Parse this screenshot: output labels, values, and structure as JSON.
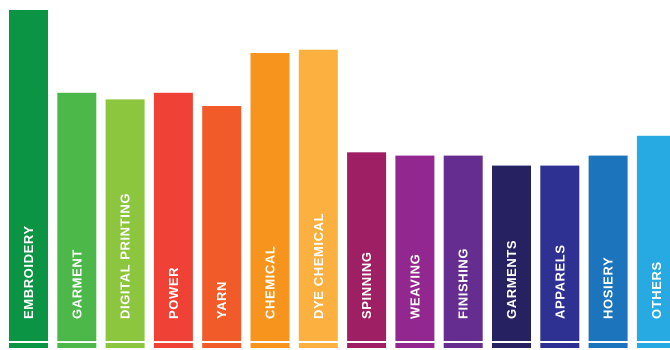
{
  "chart_data": {
    "type": "bar",
    "title": "",
    "xlabel": "",
    "ylabel": "",
    "grid": false,
    "legend": "none",
    "ylim": [
      0,
      100
    ],
    "categories": [
      "EMBROIDERY",
      "GARMENT",
      "DIGITAL PRINTING",
      "POWER",
      "YARN",
      "CHEMICAL",
      "DYE CHEMICAL",
      "SPINNING",
      "WEAVING",
      "FINISHING",
      "GARMENTS",
      "APPARELS",
      "HOSIERY",
      "OTHERS"
    ],
    "values": [
      100,
      75,
      73,
      75,
      71,
      87,
      88,
      57,
      56,
      56,
      53,
      53,
      56,
      62
    ],
    "colors": [
      "#0A9444",
      "#4DB84A",
      "#8CC63F",
      "#EF4136",
      "#F15A29",
      "#F7941D",
      "#FBB040",
      "#9E1F63",
      "#92278F",
      "#662D91",
      "#262262",
      "#2E3192",
      "#1C75BC",
      "#27AAE1"
    ]
  }
}
